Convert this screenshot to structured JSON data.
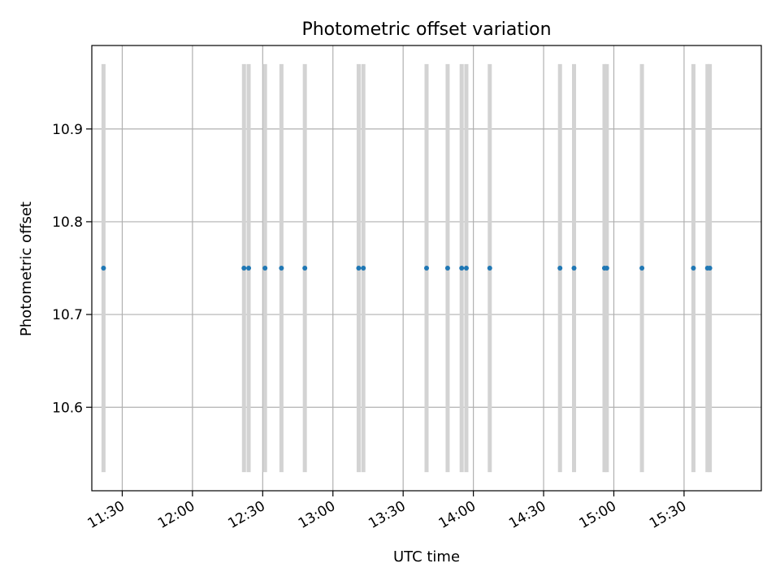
{
  "chart_data": {
    "type": "scatter",
    "title": "Photometric offset variation",
    "xlabel": "UTC time",
    "ylabel": "Photometric offset",
    "xlim": [
      "11:17",
      "16:03"
    ],
    "ylim": [
      10.51,
      10.99
    ],
    "grid": true,
    "x_ticks": [
      "11:30",
      "12:00",
      "12:30",
      "13:00",
      "13:30",
      "14:00",
      "14:30",
      "15:00",
      "15:30"
    ],
    "y_ticks": [
      "10.6",
      "10.7",
      "10.8",
      "10.9"
    ],
    "errorbar_range": [
      10.53,
      10.97
    ],
    "colors": {
      "points": "#1f77b4",
      "errorbars": "#d3d3d3",
      "grid": "#b0b0b0"
    },
    "points": [
      {
        "x": "11:22",
        "y": 10.75
      },
      {
        "x": "12:22",
        "y": 10.75
      },
      {
        "x": "12:24",
        "y": 10.75
      },
      {
        "x": "12:31",
        "y": 10.75
      },
      {
        "x": "12:38",
        "y": 10.75
      },
      {
        "x": "12:48",
        "y": 10.75
      },
      {
        "x": "13:11",
        "y": 10.75
      },
      {
        "x": "13:13",
        "y": 10.75
      },
      {
        "x": "13:40",
        "y": 10.75
      },
      {
        "x": "13:49",
        "y": 10.75
      },
      {
        "x": "13:55",
        "y": 10.75
      },
      {
        "x": "13:57",
        "y": 10.75
      },
      {
        "x": "14:07",
        "y": 10.75
      },
      {
        "x": "14:37",
        "y": 10.75
      },
      {
        "x": "14:43",
        "y": 10.75
      },
      {
        "x": "14:56",
        "y": 10.75
      },
      {
        "x": "14:57",
        "y": 10.75
      },
      {
        "x": "15:12",
        "y": 10.75
      },
      {
        "x": "15:34",
        "y": 10.75
      },
      {
        "x": "15:40",
        "y": 10.75
      },
      {
        "x": "15:41",
        "y": 10.75
      }
    ]
  }
}
